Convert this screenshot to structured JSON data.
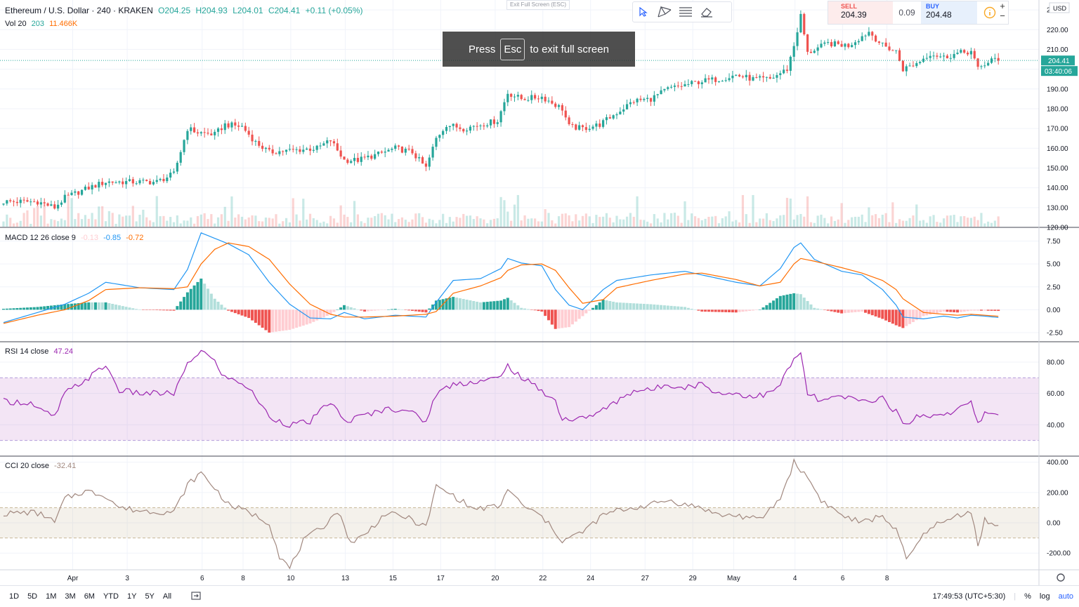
{
  "header": {
    "symbol": "Ethereum / U.S. Dollar · 240 · KRAKEN",
    "open": "O204.25",
    "high": "H204.93",
    "low": "L204.01",
    "close": "C204.41",
    "change": "+0.11 (+0.05%)",
    "vol_label": "Vol 20",
    "vol_value": "203",
    "vol_ma": "11.466K"
  },
  "exit_fullscreen_small": "Exit Full Screen (ESC)",
  "fullscreen_banner": {
    "pre": "Press",
    "key": "Esc",
    "post": "to exit full screen"
  },
  "trade": {
    "sell_label": "SELL",
    "sell_price": "204.39",
    "spread": "0.09",
    "buy_label": "BUY",
    "buy_price": "204.48"
  },
  "currency": "USD",
  "last_price": "204.41",
  "countdown": "03:40:06",
  "indicators": {
    "macd": {
      "label": "MACD 12 26 close 9",
      "hist": "-0.13",
      "macd": "-0.85",
      "signal": "-0.72"
    },
    "rsi": {
      "label": "RSI 14 close",
      "value": "47.24"
    },
    "cci": {
      "label": "CCI 20 close",
      "value": "-32.41"
    }
  },
  "bottom": {
    "timeframes": [
      "1D",
      "5D",
      "1M",
      "3M",
      "6M",
      "YTD",
      "1Y",
      "5Y",
      "All"
    ],
    "time": "17:49:53 (UTC+5:30)",
    "percent": "%",
    "log": "log",
    "auto": "auto"
  },
  "colors": {
    "up": "#26a69a",
    "down": "#ef5350",
    "macd_line": "#2196f3",
    "signal_line": "#ff6d00",
    "rsi_line": "#9c27b0",
    "cci_line": "#a1887f"
  },
  "chart_data": {
    "type": "candlestick",
    "price_axis": {
      "ylim": [
        120,
        235
      ],
      "ticks": [
        "230.00",
        "220.00",
        "210.00",
        "200.00",
        "190.00",
        "180.00",
        "170.00",
        "160.00",
        "150.00",
        "140.00",
        "130.00",
        "120.00"
      ]
    },
    "macd_axis": {
      "ylim": [
        -3.5,
        9
      ],
      "ticks": [
        "7.50",
        "5.00",
        "2.50",
        "0.00",
        "-2.50"
      ]
    },
    "rsi_axis": {
      "ylim": [
        20,
        93
      ],
      "ticks": [
        "80.00",
        "60.00",
        "40.00"
      ],
      "bands": [
        30,
        70
      ]
    },
    "cci_axis": {
      "ylim": [
        -310,
        440
      ],
      "ticks": [
        "400.00",
        "200.00",
        "0.00",
        "-200.00"
      ],
      "bands": [
        -100,
        100
      ]
    },
    "x_labels": [
      "Apr",
      "3",
      "6",
      "8",
      "10",
      "13",
      "15",
      "17",
      "20",
      "22",
      "24",
      "27",
      "29",
      "May",
      "4",
      "6",
      "8"
    ],
    "close_anchors": [
      [
        0,
        133
      ],
      [
        10,
        133
      ],
      [
        15,
        130
      ],
      [
        18,
        135
      ],
      [
        25,
        140
      ],
      [
        30,
        143
      ],
      [
        40,
        143
      ],
      [
        45,
        143
      ],
      [
        50,
        147
      ],
      [
        54,
        170
      ],
      [
        57,
        168
      ],
      [
        62,
        167
      ],
      [
        65,
        172
      ],
      [
        70,
        171
      ],
      [
        74,
        163
      ],
      [
        78,
        158
      ],
      [
        85,
        159
      ],
      [
        92,
        160
      ],
      [
        96,
        164
      ],
      [
        100,
        154
      ],
      [
        104,
        154
      ],
      [
        110,
        157
      ],
      [
        115,
        160
      ],
      [
        120,
        158
      ],
      [
        124,
        150
      ],
      [
        127,
        165
      ],
      [
        130,
        172
      ],
      [
        135,
        170
      ],
      [
        140,
        172
      ],
      [
        145,
        174
      ],
      [
        148,
        188
      ],
      [
        152,
        185
      ],
      [
        158,
        186
      ],
      [
        162,
        182
      ],
      [
        164,
        180
      ],
      [
        166,
        171
      ],
      [
        170,
        170
      ],
      [
        175,
        172
      ],
      [
        180,
        178
      ],
      [
        185,
        184
      ],
      [
        190,
        185
      ],
      [
        195,
        190
      ],
      [
        200,
        192
      ],
      [
        205,
        194
      ],
      [
        210,
        195
      ],
      [
        215,
        197
      ],
      [
        220,
        195
      ],
      [
        225,
        195
      ],
      [
        230,
        200
      ],
      [
        232,
        212
      ],
      [
        234,
        227
      ],
      [
        236,
        208
      ],
      [
        238,
        210
      ],
      [
        242,
        213
      ],
      [
        248,
        212
      ],
      [
        254,
        219
      ],
      [
        258,
        212
      ],
      [
        262,
        209
      ],
      [
        264,
        200
      ],
      [
        268,
        203
      ],
      [
        272,
        208
      ],
      [
        276,
        206
      ],
      [
        280,
        208
      ],
      [
        284,
        209
      ],
      [
        286,
        200
      ],
      [
        290,
        205
      ],
      [
        292,
        204
      ]
    ],
    "rsi_anchors": [
      [
        0,
        55
      ],
      [
        8,
        54
      ],
      [
        10,
        50
      ],
      [
        15,
        45
      ],
      [
        18,
        60
      ],
      [
        25,
        70
      ],
      [
        30,
        78
      ],
      [
        34,
        62
      ],
      [
        40,
        60
      ],
      [
        50,
        60
      ],
      [
        54,
        78
      ],
      [
        58,
        88
      ],
      [
        62,
        80
      ],
      [
        65,
        70
      ],
      [
        70,
        67
      ],
      [
        74,
        58
      ],
      [
        78,
        45
      ],
      [
        84,
        40
      ],
      [
        90,
        42
      ],
      [
        96,
        55
      ],
      [
        100,
        42
      ],
      [
        106,
        46
      ],
      [
        112,
        50
      ],
      [
        118,
        50
      ],
      [
        124,
        42
      ],
      [
        127,
        60
      ],
      [
        132,
        66
      ],
      [
        140,
        68
      ],
      [
        146,
        70
      ],
      [
        148,
        78
      ],
      [
        152,
        70
      ],
      [
        158,
        62
      ],
      [
        162,
        55
      ],
      [
        164,
        44
      ],
      [
        168,
        43
      ],
      [
        175,
        48
      ],
      [
        180,
        55
      ],
      [
        185,
        62
      ],
      [
        190,
        62
      ],
      [
        195,
        66
      ],
      [
        200,
        64
      ],
      [
        205,
        66
      ],
      [
        210,
        60
      ],
      [
        215,
        60
      ],
      [
        220,
        58
      ],
      [
        225,
        60
      ],
      [
        228,
        66
      ],
      [
        232,
        82
      ],
      [
        234,
        85
      ],
      [
        236,
        60
      ],
      [
        240,
        55
      ],
      [
        246,
        58
      ],
      [
        252,
        55
      ],
      [
        258,
        57
      ],
      [
        262,
        48
      ],
      [
        264,
        40
      ],
      [
        268,
        45
      ],
      [
        272,
        46
      ],
      [
        278,
        48
      ],
      [
        282,
        52
      ],
      [
        284,
        54
      ],
      [
        286,
        40
      ],
      [
        288,
        48
      ],
      [
        292,
        47
      ]
    ],
    "cci_anchors": [
      [
        0,
        60
      ],
      [
        8,
        70
      ],
      [
        12,
        50
      ],
      [
        15,
        0
      ],
      [
        18,
        160
      ],
      [
        24,
        210
      ],
      [
        30,
        180
      ],
      [
        34,
        100
      ],
      [
        40,
        80
      ],
      [
        50,
        70
      ],
      [
        54,
        250
      ],
      [
        58,
        330
      ],
      [
        62,
        230
      ],
      [
        66,
        120
      ],
      [
        72,
        70
      ],
      [
        78,
        0
      ],
      [
        81,
        -220
      ],
      [
        84,
        -300
      ],
      [
        88,
        -120
      ],
      [
        94,
        -20
      ],
      [
        98,
        80
      ],
      [
        102,
        -130
      ],
      [
        106,
        -80
      ],
      [
        112,
        60
      ],
      [
        118,
        40
      ],
      [
        124,
        -30
      ],
      [
        127,
        240
      ],
      [
        132,
        180
      ],
      [
        138,
        90
      ],
      [
        146,
        110
      ],
      [
        148,
        230
      ],
      [
        152,
        120
      ],
      [
        158,
        40
      ],
      [
        162,
        -60
      ],
      [
        164,
        -120
      ],
      [
        170,
        -60
      ],
      [
        176,
        50
      ],
      [
        180,
        80
      ],
      [
        185,
        100
      ],
      [
        190,
        120
      ],
      [
        195,
        150
      ],
      [
        200,
        120
      ],
      [
        205,
        100
      ],
      [
        210,
        50
      ],
      [
        215,
        50
      ],
      [
        222,
        20
      ],
      [
        228,
        160
      ],
      [
        232,
        400
      ],
      [
        236,
        300
      ],
      [
        240,
        150
      ],
      [
        246,
        50
      ],
      [
        252,
        0
      ],
      [
        258,
        50
      ],
      [
        262,
        -50
      ],
      [
        265,
        -240
      ],
      [
        268,
        -150
      ],
      [
        272,
        -20
      ],
      [
        276,
        0
      ],
      [
        280,
        50
      ],
      [
        284,
        80
      ],
      [
        286,
        -150
      ],
      [
        288,
        20
      ],
      [
        292,
        -32
      ]
    ],
    "macd_anchors": [
      [
        0,
        -1.4
      ],
      [
        10,
        -0.3
      ],
      [
        18,
        0.6
      ],
      [
        25,
        1.8
      ],
      [
        30,
        3.0
      ],
      [
        40,
        2.4
      ],
      [
        50,
        2.2
      ],
      [
        54,
        4.4
      ],
      [
        58,
        8.4
      ],
      [
        62,
        7.8
      ],
      [
        66,
        7.2
      ],
      [
        72,
        6.0
      ],
      [
        78,
        3.0
      ],
      [
        84,
        0.6
      ],
      [
        90,
        -0.9
      ],
      [
        96,
        -1.0
      ],
      [
        100,
        -0.3
      ],
      [
        106,
        -1.0
      ],
      [
        115,
        -0.6
      ],
      [
        124,
        -0.8
      ],
      [
        127,
        0.8
      ],
      [
        132,
        3.2
      ],
      [
        140,
        3.4
      ],
      [
        146,
        4.5
      ],
      [
        148,
        5.6
      ],
      [
        152,
        5.1
      ],
      [
        158,
        4.8
      ],
      [
        162,
        2.2
      ],
      [
        166,
        0.5
      ],
      [
        170,
        0.0
      ],
      [
        176,
        2.2
      ],
      [
        180,
        3.2
      ],
      [
        190,
        3.8
      ],
      [
        200,
        4.2
      ],
      [
        205,
        3.8
      ],
      [
        215,
        3.0
      ],
      [
        222,
        2.6
      ],
      [
        228,
        4.5
      ],
      [
        232,
        6.8
      ],
      [
        234,
        7.3
      ],
      [
        238,
        5.5
      ],
      [
        246,
        4.2
      ],
      [
        252,
        3.8
      ],
      [
        258,
        2.2
      ],
      [
        262,
        0.5
      ],
      [
        264,
        -0.8
      ],
      [
        270,
        -1.0
      ],
      [
        276,
        -0.7
      ],
      [
        280,
        -0.9
      ],
      [
        284,
        -0.6
      ],
      [
        288,
        -0.7
      ],
      [
        292,
        -0.85
      ]
    ],
    "signal_anchors": [
      [
        0,
        -1.5
      ],
      [
        10,
        -0.6
      ],
      [
        18,
        0.0
      ],
      [
        25,
        1.0
      ],
      [
        30,
        2.2
      ],
      [
        40,
        2.4
      ],
      [
        50,
        2.3
      ],
      [
        54,
        2.5
      ],
      [
        58,
        5.0
      ],
      [
        62,
        6.6
      ],
      [
        66,
        7.3
      ],
      [
        72,
        6.9
      ],
      [
        78,
        5.5
      ],
      [
        84,
        2.8
      ],
      [
        90,
        0.6
      ],
      [
        96,
        -0.5
      ],
      [
        100,
        -0.8
      ],
      [
        106,
        -0.8
      ],
      [
        115,
        -0.7
      ],
      [
        124,
        -0.5
      ],
      [
        127,
        -0.2
      ],
      [
        132,
        1.8
      ],
      [
        140,
        2.6
      ],
      [
        146,
        3.5
      ],
      [
        148,
        4.3
      ],
      [
        152,
        4.9
      ],
      [
        158,
        5.0
      ],
      [
        162,
        4.3
      ],
      [
        166,
        2.4
      ],
      [
        170,
        0.7
      ],
      [
        176,
        1.1
      ],
      [
        180,
        2.4
      ],
      [
        190,
        3.2
      ],
      [
        200,
        3.9
      ],
      [
        205,
        4.0
      ],
      [
        215,
        3.3
      ],
      [
        222,
        2.6
      ],
      [
        228,
        3.0
      ],
      [
        232,
        5.0
      ],
      [
        234,
        5.6
      ],
      [
        238,
        5.3
      ],
      [
        246,
        4.6
      ],
      [
        252,
        4.0
      ],
      [
        258,
        3.2
      ],
      [
        262,
        2.2
      ],
      [
        264,
        1.2
      ],
      [
        270,
        -0.3
      ],
      [
        276,
        -0.5
      ],
      [
        280,
        -0.6
      ],
      [
        284,
        -0.5
      ],
      [
        288,
        -0.6
      ],
      [
        292,
        -0.72
      ]
    ]
  }
}
